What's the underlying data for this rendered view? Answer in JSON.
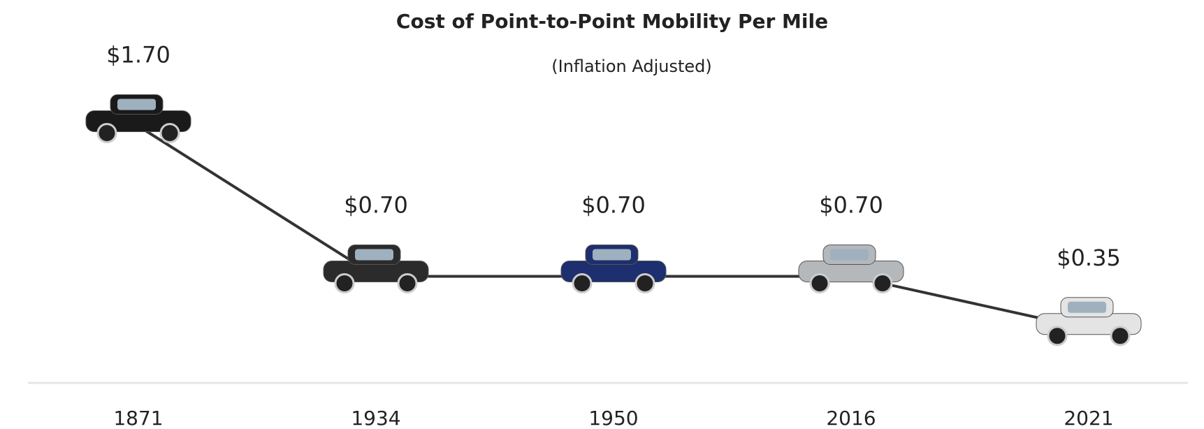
{
  "chart_data": {
    "type": "line",
    "title": "Cost of Point-to-Point Mobility Per Mile",
    "subtitle": "(Inflation Adjusted)",
    "categories": [
      "1871",
      "1934",
      "1950",
      "2016",
      "2021"
    ],
    "values": [
      1.7,
      0.7,
      0.7,
      0.7,
      0.35
    ],
    "value_labels": [
      "$1.70",
      "$0.70",
      "$0.70",
      "$0.70",
      "$0.35"
    ],
    "color": "#333333",
    "marker_colors": [
      "#1a1a1a",
      "#2b2b2b",
      "#1d2f6e",
      "#b5b8bb",
      "#e4e4e4"
    ]
  }
}
